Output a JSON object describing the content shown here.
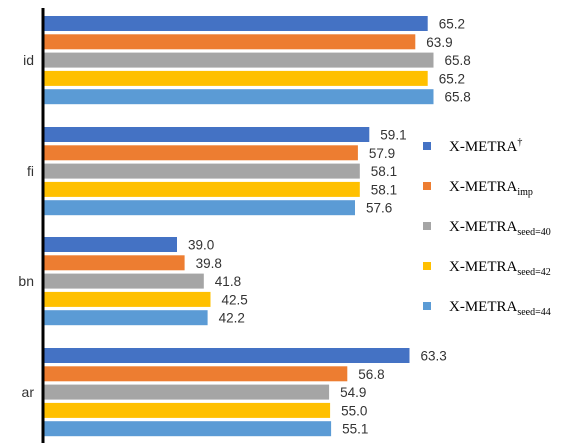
{
  "chart_data": {
    "type": "bar",
    "orientation": "horizontal",
    "title": "",
    "xlabel": "",
    "ylabel": "",
    "xlim": [
      25,
      75
    ],
    "grid": false,
    "legend_position": "right",
    "categories": [
      "id",
      "fi",
      "bn",
      "ar"
    ],
    "series": [
      {
        "name": "X-METRA",
        "name_sup": "†",
        "name_sub": "",
        "color": "#4472C4",
        "values": [
          65.2,
          59.1,
          39.0,
          63.3
        ]
      },
      {
        "name": "X-METRA",
        "name_sup": "",
        "name_sub": "imp",
        "color": "#ED7D31",
        "values": [
          63.9,
          57.9,
          39.8,
          56.8
        ]
      },
      {
        "name": "X-METRA",
        "name_sup": "",
        "name_sub": "seed=40",
        "color": "#A5A5A5",
        "values": [
          65.8,
          58.1,
          41.8,
          54.9
        ]
      },
      {
        "name": "X-METRA",
        "name_sup": "",
        "name_sub": "seed=42",
        "color": "#FFC000",
        "values": [
          65.2,
          58.1,
          42.5,
          55.0
        ]
      },
      {
        "name": "X-METRA",
        "name_sup": "",
        "name_sub": "seed=44",
        "color": "#5B9BD5",
        "values": [
          65.8,
          57.6,
          42.2,
          55.1
        ]
      }
    ]
  }
}
